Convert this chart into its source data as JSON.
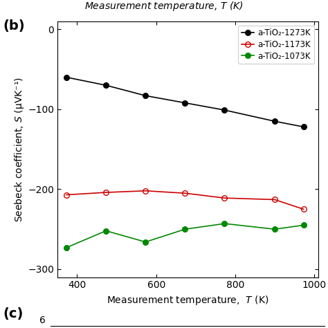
{
  "label_b": "(b)",
  "label_c": "(c)",
  "xlabel": "Measurement temperature,  $T$ (K)",
  "ylabel": "Seebeck coefficient, $S$ (μVK⁻¹)",
  "xlim": [
    350,
    1010
  ],
  "ylim": [
    -310,
    10
  ],
  "xticks": [
    400,
    600,
    800,
    1000
  ],
  "yticks": [
    0,
    -100,
    -200,
    -300
  ],
  "top_label_text": "Measurement temperature, $T$ (K)",
  "series": [
    {
      "label": "a-TiO₂-1273K",
      "color": "#000000",
      "marker": "o",
      "markerfacecolor": "#000000",
      "markeredgecolor": "#000000",
      "T": [
        373,
        473,
        573,
        673,
        773,
        900,
        973
      ],
      "S": [
        -60,
        -70,
        -83,
        -92,
        -101,
        -115,
        -122
      ]
    },
    {
      "label": "a-TiO₂-1173K",
      "color": "#cc0000",
      "marker": "o",
      "markerfacecolor": "none",
      "markeredgecolor": "#cc0000",
      "T": [
        373,
        473,
        573,
        673,
        773,
        900,
        973
      ],
      "S": [
        -207,
        -204,
        -202,
        -205,
        -211,
        -213,
        -225
      ]
    },
    {
      "label": "a-TiO₂-1073K",
      "color": "#008800",
      "marker": "o",
      "markerfacecolor": "#008800",
      "markeredgecolor": "#008800",
      "T": [
        373,
        473,
        573,
        673,
        773,
        900,
        973
      ],
      "S": [
        -273,
        -252,
        -266,
        -250,
        -243,
        -250,
        -245
      ]
    }
  ],
  "legend_loc": "upper right",
  "figsize": [
    4.74,
    4.74
  ],
  "dpi": 100,
  "top_strip_height": 0.055,
  "bottom_strip_height": 0.075
}
